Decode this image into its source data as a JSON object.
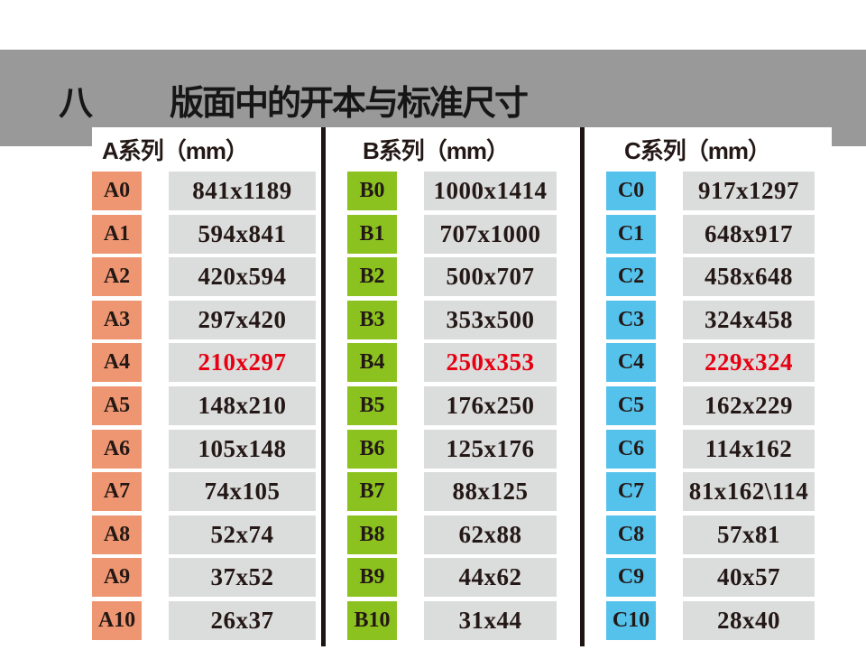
{
  "slide": {
    "title_prefix": "八",
    "title": "版面中的开本与标准尺寸"
  },
  "colors": {
    "band_gray": "#999999",
    "series_a": "#ee9672",
    "series_b": "#8cc21f",
    "series_c": "#55c2ec",
    "value_cell_gray": "#dbdcdc",
    "highlight_red": "#e60012",
    "text_dark": "#231815",
    "divider_black": "#1e1412"
  },
  "table": {
    "columns": [
      {
        "id": "a",
        "header": "A系列（mm）",
        "label_color": "#ee9672",
        "rows": [
          {
            "label": "A0",
            "value": "841x1189"
          },
          {
            "label": "A1",
            "value": "594x841"
          },
          {
            "label": "A2",
            "value": "420x594"
          },
          {
            "label": "A3",
            "value": "297x420"
          },
          {
            "label": "A4",
            "value": "210x297",
            "highlight": true
          },
          {
            "label": "A5",
            "value": "148x210"
          },
          {
            "label": "A6",
            "value": "105x148"
          },
          {
            "label": "A7",
            "value": "74x105"
          },
          {
            "label": "A8",
            "value": "52x74"
          },
          {
            "label": "A9",
            "value": "37x52"
          },
          {
            "label": "A10",
            "value": "26x37"
          }
        ]
      },
      {
        "id": "b",
        "header": "B系列（mm）",
        "label_color": "#8cc21f",
        "rows": [
          {
            "label": "B0",
            "value": "1000x1414"
          },
          {
            "label": "B1",
            "value": "707x1000"
          },
          {
            "label": "B2",
            "value": "500x707"
          },
          {
            "label": "B3",
            "value": "353x500"
          },
          {
            "label": "B4",
            "value": "250x353",
            "highlight": true
          },
          {
            "label": "B5",
            "value": "176x250"
          },
          {
            "label": "B6",
            "value": "125x176"
          },
          {
            "label": "B7",
            "value": "88x125"
          },
          {
            "label": "B8",
            "value": "62x88"
          },
          {
            "label": "B9",
            "value": "44x62"
          },
          {
            "label": "B10",
            "value": "31x44"
          }
        ]
      },
      {
        "id": "c",
        "header": "C系列（mm）",
        "label_color": "#55c2ec",
        "rows": [
          {
            "label": "C0",
            "value": "917x1297"
          },
          {
            "label": "C1",
            "value": "648x917"
          },
          {
            "label": "C2",
            "value": "458x648"
          },
          {
            "label": "C3",
            "value": "324x458"
          },
          {
            "label": "C4",
            "value": "229x324",
            "highlight": true
          },
          {
            "label": "C5",
            "value": "162x229"
          },
          {
            "label": "C6",
            "value": "114x162"
          },
          {
            "label": "C7",
            "value": "81x162\\114"
          },
          {
            "label": "C8",
            "value": "57x81"
          },
          {
            "label": "C9",
            "value": "40x57"
          },
          {
            "label": "C10",
            "value": "28x40"
          }
        ]
      }
    ]
  }
}
